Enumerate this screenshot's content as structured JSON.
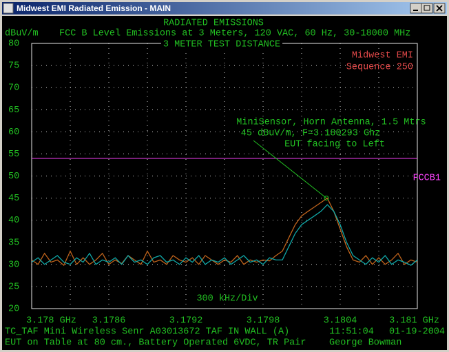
{
  "window": {
    "title": "Midwest EMI Radiated Emission - MAIN"
  },
  "chart_data": {
    "type": "line",
    "title": "RADIATED EMISSIONS",
    "subtitle": "FCC B Level Emissions at 3 Meters, 120 VAC, 60 Hz, 30-18000 MHz",
    "y_label": "dBuV/m",
    "plot_label": "3 METER TEST DISTANCE",
    "div_label": "300 kHz/Div",
    "brand": [
      "Midwest EMI",
      "Sequence 250"
    ],
    "annotation": {
      "lines": [
        "MiniSensor, Horn Antenna, 1.5 Mtrs",
        "45 dBuV/m, F=3.180293 Ghz",
        "EUT facing to Left"
      ],
      "x": 3.180293,
      "y": 45
    },
    "limit": {
      "name": "FCCB1",
      "value": 54,
      "color": "#ff44ff"
    },
    "xlim": [
      3.178,
      3.181
    ],
    "xticks": [
      {
        "value": 3.178,
        "label": "3.178 GHz"
      },
      3.1786,
      3.1792,
      3.1798,
      3.1804,
      {
        "value": 3.181,
        "label": "3.181 GHz"
      }
    ],
    "ylim": [
      20,
      80
    ],
    "yticks": [
      20,
      25,
      30,
      35,
      40,
      45,
      50,
      55,
      60,
      65,
      70,
      75,
      80
    ],
    "grid": true,
    "x": [
      3.178,
      3.17805,
      3.1781,
      3.17815,
      3.1782,
      3.17825,
      3.1783,
      3.17835,
      3.1784,
      3.17845,
      3.1785,
      3.17855,
      3.1786,
      3.17865,
      3.1787,
      3.17875,
      3.1788,
      3.17885,
      3.1789,
      3.17895,
      3.179,
      3.17905,
      3.1791,
      3.17915,
      3.1792,
      3.17925,
      3.1793,
      3.17935,
      3.1794,
      3.17945,
      3.1795,
      3.17955,
      3.1796,
      3.17965,
      3.1797,
      3.17975,
      3.1798,
      3.17985,
      3.1799,
      3.17995,
      3.18,
      3.18005,
      3.1801,
      3.18015,
      3.1802,
      3.18025,
      3.1803,
      3.18035,
      3.1804,
      3.18045,
      3.1805,
      3.18055,
      3.1806,
      3.18065,
      3.1807,
      3.18075,
      3.1808,
      3.18085,
      3.1809,
      3.18095,
      3.181
    ],
    "series": [
      {
        "color": "#c0641c",
        "values": [
          31,
          30,
          32.5,
          30.5,
          31,
          29.8,
          33,
          30,
          31.5,
          30,
          31,
          32.5,
          30,
          31,
          30.2,
          32,
          31,
          30,
          33,
          30.5,
          31,
          30,
          32,
          31,
          30.5,
          31.5,
          30,
          32,
          31,
          30,
          31,
          30.5,
          32,
          30,
          31,
          30.5,
          31,
          30.8,
          32,
          33,
          36,
          39,
          41,
          42,
          43,
          44,
          45,
          42,
          38,
          34,
          31,
          30.5,
          32,
          30,
          31.5,
          30,
          31,
          32.5,
          30,
          31,
          30.5
        ]
      },
      {
        "color": "#10a8a8",
        "values": [
          30.5,
          31.5,
          30,
          31,
          32,
          30.5,
          30,
          31.5,
          30.5,
          32.5,
          30,
          31,
          30.5,
          31.5,
          30,
          32,
          30.5,
          31,
          30,
          31.5,
          32,
          30.5,
          31,
          30,
          31.5,
          30.5,
          32,
          30,
          31,
          30.5,
          31.5,
          30,
          31,
          32,
          30.5,
          31,
          30,
          31.5,
          31,
          31,
          34,
          37,
          39,
          40,
          41,
          42,
          43.5,
          42,
          39,
          35,
          32,
          31,
          30,
          31.5,
          30.5,
          32,
          30,
          31,
          30.5,
          29.8,
          31
        ]
      }
    ]
  },
  "footer": {
    "line1_left": "TC_TAF Mini Wireless Senr  A03013672 TAF IN WALL (A)",
    "time": "11:51:04",
    "date": "01-19-2004",
    "line2_left": "EUT on Table at 80 cm., Battery Operated 6VDC, TR Pair",
    "operator": "George Bowman"
  }
}
